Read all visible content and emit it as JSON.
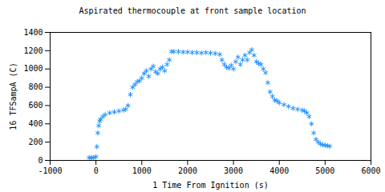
{
  "chart_data": {
    "type": "scatter",
    "title": "Aspirated thermocouple at front sample location",
    "x_label": "1 Time From Ignition (s)",
    "y_label": "16 TFSampA (C)",
    "x": [
      -150,
      -100,
      -50,
      0,
      20,
      40,
      60,
      80,
      100,
      150,
      200,
      300,
      400,
      500,
      600,
      650,
      700,
      750,
      800,
      850,
      900,
      950,
      1000,
      1050,
      1100,
      1150,
      1200,
      1250,
      1300,
      1350,
      1400,
      1450,
      1500,
      1550,
      1600,
      1650,
      1700,
      1800,
      1900,
      2000,
      2100,
      2200,
      2300,
      2400,
      2500,
      2600,
      2700,
      2750,
      2800,
      2850,
      2900,
      2950,
      3000,
      3050,
      3100,
      3150,
      3200,
      3250,
      3300,
      3350,
      3400,
      3450,
      3500,
      3550,
      3600,
      3650,
      3700,
      3750,
      3800,
      3850,
      3900,
      3950,
      4000,
      4100,
      4200,
      4300,
      4400,
      4500,
      4550,
      4600,
      4650,
      4700,
      4750,
      4800,
      4850,
      4900,
      4950,
      5000,
      5050,
      5100
    ],
    "values": [
      30,
      30,
      30,
      40,
      150,
      300,
      380,
      430,
      450,
      480,
      500,
      520,
      530,
      540,
      550,
      560,
      600,
      720,
      800,
      830,
      860,
      870,
      900,
      950,
      980,
      920,
      1000,
      1030,
      970,
      950,
      1000,
      1020,
      980,
      1050,
      1100,
      1190,
      1190,
      1190,
      1185,
      1185,
      1180,
      1180,
      1175,
      1180,
      1175,
      1170,
      1160,
      1100,
      1050,
      1020,
      1010,
      1040,
      1000,
      1080,
      1130,
      1050,
      1100,
      1150,
      1100,
      1180,
      1210,
      1150,
      1080,
      1060,
      1050,
      1000,
      960,
      850,
      750,
      700,
      660,
      650,
      630,
      610,
      590,
      570,
      560,
      550,
      540,
      520,
      480,
      400,
      300,
      230,
      200,
      180,
      170,
      165,
      160,
      155
    ],
    "color": "#1e90ff",
    "marker": "asterisk",
    "xlim": [
      -1000,
      6000
    ],
    "xticks": [
      -1000,
      0,
      1000,
      2000,
      3000,
      4000,
      5000,
      6000
    ],
    "ylim": [
      0,
      1400
    ],
    "yticks": [
      0,
      200,
      400,
      600,
      800,
      1000,
      1200,
      1400
    ],
    "grid": false
  }
}
